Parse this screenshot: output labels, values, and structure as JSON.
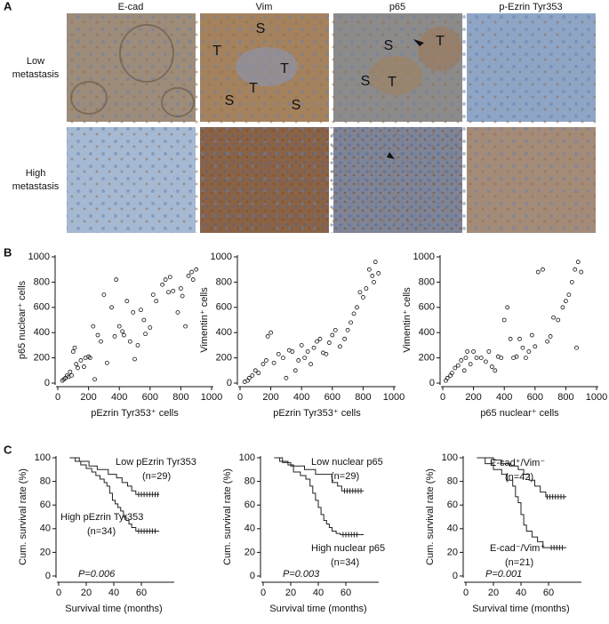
{
  "panel_a": {
    "label": "A",
    "columns": [
      "E-cad",
      "Vim",
      "p65",
      "p-Ezrin Tyr353"
    ],
    "rows": [
      [
        "Low",
        "metastasis"
      ],
      [
        "High",
        "metastasis"
      ]
    ],
    "vim_low_labels": [
      "S",
      "T",
      "T",
      "T",
      "S",
      "S"
    ],
    "p65_low_labels": [
      "S",
      "T",
      "S",
      "T"
    ]
  },
  "panel_b": {
    "label": "B"
  },
  "panel_c": {
    "label": "C"
  },
  "chart_data": [
    {
      "type": "scatter",
      "x_label": "pEzrin Tyr353⁺ cells",
      "y_label": "p65 nuclear⁺ cells",
      "xlim": [
        0,
        1000
      ],
      "ylim": [
        0,
        1000
      ],
      "xticks": [
        0,
        200,
        400,
        600,
        800,
        1000
      ],
      "yticks": [
        0,
        200,
        400,
        600,
        800,
        1000
      ],
      "x": [
        30,
        40,
        50,
        60,
        70,
        80,
        90,
        100,
        110,
        120,
        130,
        150,
        170,
        180,
        200,
        210,
        230,
        240,
        260,
        280,
        300,
        320,
        350,
        370,
        380,
        400,
        420,
        430,
        450,
        470,
        490,
        500,
        520,
        540,
        560,
        570,
        600,
        620,
        640,
        680,
        700,
        720,
        730,
        750,
        780,
        800,
        810,
        830,
        850,
        870,
        900,
        880
      ],
      "values": [
        20,
        30,
        40,
        60,
        50,
        90,
        60,
        250,
        280,
        150,
        120,
        180,
        130,
        200,
        210,
        200,
        450,
        30,
        380,
        330,
        700,
        160,
        600,
        370,
        820,
        450,
        410,
        380,
        650,
        330,
        560,
        190,
        300,
        580,
        500,
        390,
        440,
        700,
        650,
        780,
        820,
        720,
        840,
        730,
        560,
        750,
        690,
        450,
        850,
        880,
        900,
        820
      ]
    },
    {
      "type": "scatter",
      "x_label": "pEzrin Tyr353⁺ cells",
      "y_label": "Vimentin⁺ cells",
      "xlim": [
        0,
        1000
      ],
      "ylim": [
        0,
        1000
      ],
      "xticks": [
        0,
        200,
        400,
        600,
        800,
        1000
      ],
      "yticks": [
        0,
        200,
        400,
        600,
        800,
        1000
      ],
      "x": [
        30,
        50,
        60,
        80,
        100,
        120,
        150,
        170,
        180,
        200,
        220,
        250,
        280,
        300,
        320,
        340,
        360,
        380,
        400,
        420,
        440,
        460,
        480,
        500,
        520,
        540,
        560,
        580,
        600,
        620,
        650,
        680,
        700,
        720,
        740,
        760,
        780,
        800,
        820,
        840,
        860,
        880,
        900,
        870
      ],
      "values": [
        10,
        20,
        40,
        60,
        100,
        80,
        150,
        180,
        370,
        400,
        160,
        230,
        200,
        40,
        260,
        250,
        100,
        180,
        300,
        200,
        250,
        150,
        280,
        330,
        350,
        240,
        230,
        320,
        380,
        420,
        290,
        350,
        420,
        480,
        550,
        600,
        720,
        680,
        750,
        900,
        850,
        960,
        870,
        800
      ]
    },
    {
      "type": "scatter",
      "x_label": "p65 nuclear⁺ cells",
      "y_label": "Vimentin⁺ cells",
      "xlim": [
        0,
        1000
      ],
      "ylim": [
        0,
        1000
      ],
      "xticks": [
        0,
        200,
        400,
        600,
        800,
        1000
      ],
      "yticks": [
        0,
        200,
        400,
        600,
        800,
        1000
      ],
      "x": [
        20,
        30,
        50,
        60,
        80,
        100,
        120,
        140,
        150,
        160,
        180,
        200,
        220,
        250,
        280,
        300,
        320,
        340,
        360,
        380,
        400,
        420,
        440,
        460,
        480,
        500,
        520,
        540,
        560,
        580,
        600,
        620,
        650,
        680,
        700,
        720,
        750,
        780,
        800,
        820,
        840,
        860,
        880,
        900,
        870
      ],
      "values": [
        20,
        40,
        60,
        80,
        120,
        140,
        180,
        100,
        200,
        250,
        150,
        250,
        200,
        200,
        170,
        250,
        130,
        100,
        210,
        200,
        500,
        600,
        350,
        200,
        210,
        350,
        280,
        200,
        250,
        380,
        290,
        880,
        900,
        330,
        370,
        520,
        500,
        600,
        650,
        700,
        800,
        900,
        960,
        880,
        280
      ]
    },
    {
      "type": "step",
      "x_label": "Survival time (months)",
      "y_label": "Cum. survival rate (%)",
      "p_value": "P=0.006",
      "xlim": [
        0,
        80
      ],
      "ylim": [
        0,
        100
      ],
      "xticks": [
        0,
        20,
        40,
        60
      ],
      "yticks": [
        0,
        20,
        40,
        60,
        80,
        100
      ],
      "series": [
        {
          "name": "Low pEzrin Tyr353",
          "n_label": "(n=29)",
          "color": "#222",
          "x": [
            8,
            15,
            22,
            28,
            36,
            42,
            46,
            50,
            53,
            56,
            73
          ],
          "values": [
            100,
            97,
            93,
            90,
            86,
            83,
            79,
            76,
            72,
            69,
            69
          ],
          "censored": [
            58,
            60,
            62,
            64,
            66,
            68,
            70,
            72
          ]
        },
        {
          "name": "High pEzrin Tyr353",
          "n_label": "(n=34)",
          "color": "#222",
          "x": [
            8,
            12,
            16,
            20,
            24,
            27,
            30,
            33,
            35,
            37,
            39,
            41,
            43,
            45,
            47,
            49,
            51,
            53,
            56,
            73
          ],
          "values": [
            100,
            97,
            94,
            91,
            88,
            85,
            82,
            79,
            76,
            70,
            64,
            61,
            58,
            55,
            50,
            47,
            44,
            41,
            38,
            38
          ],
          "censored": [
            58,
            60,
            62,
            64,
            66,
            68,
            70
          ]
        }
      ]
    },
    {
      "type": "step",
      "x_label": "Survival time (months)",
      "y_label": "Cum. survival rate (%)",
      "p_value": "P=0.003",
      "xlim": [
        0,
        80
      ],
      "ylim": [
        0,
        100
      ],
      "xticks": [
        0,
        20,
        40,
        60
      ],
      "yticks": [
        0,
        20,
        40,
        60,
        80,
        100
      ],
      "series": [
        {
          "name": "Low nuclear p65",
          "n_label": "(n=29)",
          "color": "#222",
          "x": [
            8,
            14,
            20,
            30,
            38,
            44,
            50,
            54,
            57,
            73
          ],
          "values": [
            100,
            96,
            93,
            90,
            86,
            86,
            79,
            76,
            72,
            72
          ],
          "censored": [
            59,
            61,
            63,
            65,
            67,
            69,
            71
          ]
        },
        {
          "name": "High nuclear p65",
          "n_label": "(n=34)",
          "color": "#222",
          "x": [
            8,
            12,
            18,
            22,
            27,
            31,
            34,
            36,
            38,
            40,
            42,
            44,
            46,
            48,
            50,
            53,
            56,
            73
          ],
          "values": [
            100,
            97,
            94,
            88,
            85,
            82,
            76,
            70,
            64,
            58,
            52,
            47,
            44,
            41,
            38,
            36,
            35,
            35
          ],
          "censored": [
            58,
            60,
            62,
            64,
            66,
            68
          ]
        }
      ]
    },
    {
      "type": "step",
      "x_label": "Survival time (months)",
      "y_label": "Cum. survival rate (%)",
      "p_value": "P=0.001",
      "xlim": [
        0,
        80
      ],
      "ylim": [
        0,
        100
      ],
      "xticks": [
        0,
        20,
        40,
        60
      ],
      "yticks": [
        0,
        20,
        40,
        60,
        80,
        100
      ],
      "series": [
        {
          "name": "E-cad⁺/Vim⁻",
          "n_label": "(n=42)",
          "color": "#222",
          "x": [
            8,
            20,
            26,
            32,
            38,
            42,
            46,
            50,
            54,
            58,
            73
          ],
          "values": [
            100,
            98,
            95,
            93,
            90,
            86,
            81,
            76,
            71,
            67,
            67
          ],
          "censored": [
            59,
            61,
            63,
            65,
            67,
            69,
            71
          ]
        },
        {
          "name": "E-cad⁻/Vim⁺",
          "n_label": "(n=21)",
          "color": "#222",
          "x": [
            8,
            14,
            20,
            26,
            30,
            34,
            36,
            38,
            40,
            42,
            44,
            48,
            52,
            56,
            73
          ],
          "values": [
            100,
            95,
            90,
            86,
            81,
            76,
            67,
            62,
            52,
            43,
            38,
            33,
            29,
            24,
            24
          ],
          "censored": [
            62,
            64,
            66,
            68,
            70
          ]
        }
      ]
    }
  ]
}
